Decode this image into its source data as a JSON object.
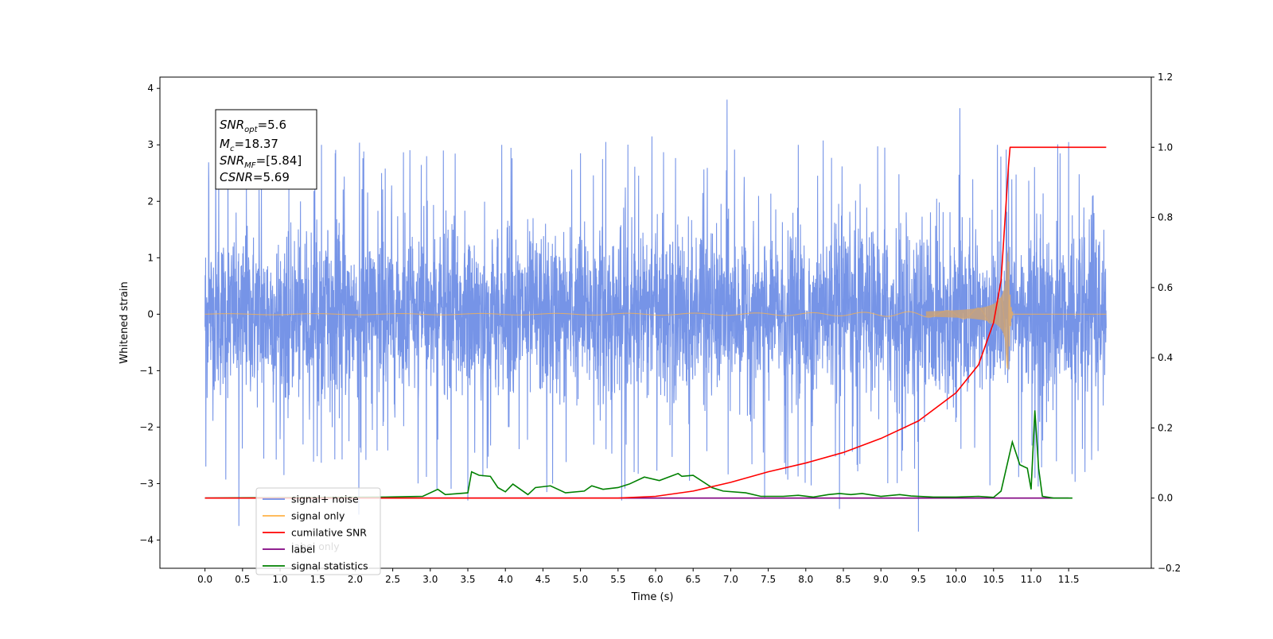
{
  "chart_data": {
    "type": "line",
    "xlabel": "Time (s)",
    "ylabel_left": "Whitened strain",
    "ylabel_right": "",
    "xlim": [
      -0.6,
      12.6
    ],
    "xticks": [
      "0.0",
      "0.5",
      "1.0",
      "1.5",
      "2.0",
      "2.5",
      "3.0",
      "3.5",
      "4.0",
      "4.5",
      "5.0",
      "5.5",
      "6.0",
      "6.5",
      "7.0",
      "7.5",
      "8.0",
      "8.5",
      "9.0",
      "9.5",
      "10.0",
      "10.5",
      "11.0",
      "11.5"
    ],
    "ylim_left": [
      -4.5,
      4.2
    ],
    "yticks_left": [
      "4",
      "3",
      "2",
      "1",
      "0",
      "−1",
      "−2",
      "−3",
      "−4"
    ],
    "ylim_right": [
      -0.2,
      1.2
    ],
    "yticks_right": [
      "1.2",
      "1.0",
      "0.8",
      "0.6",
      "0.4",
      "0.2",
      "0.0",
      "−0.2"
    ],
    "annotation": {
      "snr_opt_label": "SNR",
      "snr_opt_sub": "opt",
      "snr_opt_value": "=5.6",
      "mc_label": "M",
      "mc_sub": "c",
      "mc_value": "=18.37",
      "snr_mf_label": "SNR",
      "snr_mf_sub": "MF",
      "snr_mf_value": "=[5.84]",
      "csnr_label": "CSNR",
      "csnr_value": "=5.69"
    },
    "legend": {
      "placement": "lower-left",
      "entries": [
        {
          "label": "signal+ noise",
          "color": "#6f8ee6"
        },
        {
          "label": "signal only",
          "color": "#ffb347"
        },
        {
          "label": "cumilative SNR",
          "color": "#ff0000"
        },
        {
          "label": "label",
          "color": "#800080"
        },
        {
          "label": "signal statistics",
          "color": "#008000"
        }
      ],
      "ghost_text": "label only"
    },
    "series": [
      {
        "name": "signal+ noise",
        "axis": "left",
        "color": "#6f8ee6",
        "x_range": [
          0.0,
          12.0
        ],
        "envelope": "noise between about -2.0 and 2.2 with spikes",
        "spikes_x": [
          0.05,
          0.45,
          0.75,
          1.05,
          1.55,
          2.05,
          2.35,
          2.95,
          3.5,
          3.95,
          4.55,
          5.0,
          5.55,
          5.95,
          6.45,
          6.95,
          7.45,
          7.9,
          8.45,
          9.05,
          9.5,
          10.05,
          10.55,
          11.05,
          11.5
        ],
        "spikes_y": [
          2.35,
          -3.75,
          2.3,
          -2.85,
          3.0,
          -3.55,
          2.5,
          2.8,
          -3.3,
          3.0,
          -3.15,
          2.85,
          -3.3,
          3.15,
          -2.95,
          3.8,
          -3.25,
          3.0,
          -3.45,
          2.95,
          -3.85,
          3.65,
          3.0,
          -2.9,
          3.05
        ]
      },
      {
        "name": "signal only",
        "axis": "left",
        "color": "#ffb347",
        "chirp_start": 0.0,
        "chirp_merger": 10.7,
        "peak_amplitude": 1.2,
        "end": 12.0
      },
      {
        "name": "cumilative SNR",
        "axis": "right",
        "color": "#ff0000",
        "x": [
          0.0,
          5.5,
          6.0,
          6.5,
          7.0,
          7.5,
          8.0,
          8.5,
          9.0,
          9.5,
          10.0,
          10.3,
          10.5,
          10.6,
          10.7,
          10.72,
          12.0
        ],
        "values": [
          0.0,
          0.0,
          0.005,
          0.02,
          0.045,
          0.075,
          0.1,
          0.13,
          0.17,
          0.22,
          0.3,
          0.38,
          0.5,
          0.62,
          0.95,
          1.0,
          1.0
        ]
      },
      {
        "name": "label",
        "axis": "right",
        "color": "#800080",
        "x": [
          0.0,
          11.5
        ],
        "values": [
          0.0,
          0.0
        ]
      },
      {
        "name": "signal statistics",
        "axis": "right",
        "color": "#008000",
        "x": [
          0.0,
          2.4,
          2.9,
          3.1,
          3.2,
          3.5,
          3.55,
          3.65,
          3.8,
          3.9,
          4.0,
          4.1,
          4.3,
          4.4,
          4.6,
          4.8,
          5.05,
          5.15,
          5.3,
          5.5,
          5.65,
          5.85,
          6.05,
          6.3,
          6.35,
          6.5,
          6.75,
          6.9,
          7.2,
          7.4,
          7.7,
          7.9,
          8.1,
          8.3,
          8.45,
          8.6,
          8.75,
          9.0,
          9.25,
          9.4,
          9.7,
          10.0,
          10.3,
          10.5,
          10.6,
          10.75,
          10.85,
          10.95,
          11.0,
          11.05,
          11.1,
          11.15,
          11.3,
          11.55
        ],
        "values": [
          0.0,
          0.003,
          0.005,
          0.025,
          0.01,
          0.015,
          0.075,
          0.065,
          0.062,
          0.03,
          0.018,
          0.04,
          0.01,
          0.03,
          0.035,
          0.015,
          0.02,
          0.035,
          0.025,
          0.03,
          0.04,
          0.06,
          0.05,
          0.07,
          0.062,
          0.065,
          0.03,
          0.02,
          0.015,
          0.005,
          0.005,
          0.008,
          0.003,
          0.01,
          0.013,
          0.01,
          0.013,
          0.005,
          0.01,
          0.006,
          0.003,
          0.003,
          0.005,
          0.002,
          0.02,
          0.16,
          0.095,
          0.085,
          0.025,
          0.25,
          0.085,
          0.005,
          0.0,
          0.0
        ]
      }
    ]
  }
}
